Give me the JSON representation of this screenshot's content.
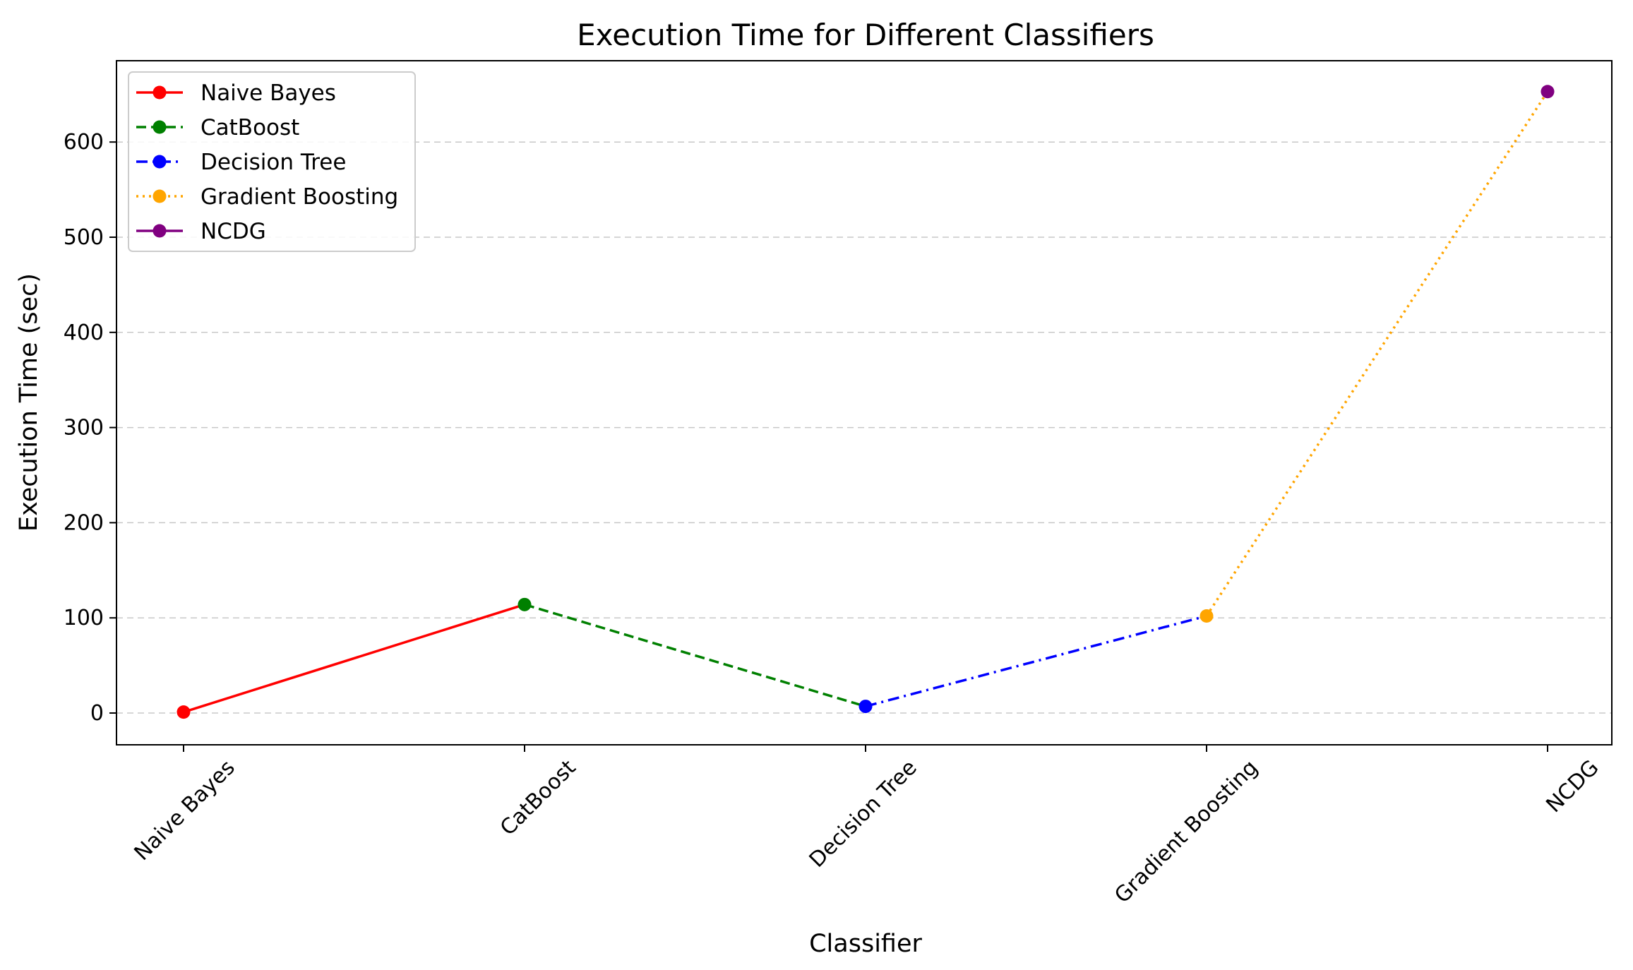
{
  "chart_data": {
    "type": "line",
    "title": "Execution Time for Different Classifiers",
    "xlabel": "Classifier",
    "ylabel": "Execution Time (sec)",
    "categories": [
      "Naive Bayes",
      "CatBoost",
      "Decision Tree",
      "Gradient Boosting",
      "NCDG"
    ],
    "values": [
      1,
      114,
      7,
      102,
      653
    ],
    "ylim": [
      -33,
      685
    ],
    "yticks": [
      0,
      100,
      200,
      300,
      400,
      500,
      600
    ],
    "ytick_labels": [
      "0",
      "100",
      "200",
      "300",
      "400",
      "500",
      "600"
    ],
    "grid": "y-dashed",
    "legend_position": "top-left",
    "series": [
      {
        "name": "Naive Bayes",
        "color": "#ff0000",
        "linestyle": "solid",
        "from_index": 0,
        "to_index": 1,
        "marker_index": 0
      },
      {
        "name": "CatBoost",
        "color": "#008000",
        "linestyle": "dashed",
        "from_index": 1,
        "to_index": 2,
        "marker_index": 1
      },
      {
        "name": "Decision Tree",
        "color": "#0000ff",
        "linestyle": "dashdot",
        "from_index": 2,
        "to_index": 3,
        "marker_index": 2
      },
      {
        "name": "Gradient Boosting",
        "color": "#ffa500",
        "linestyle": "dotted",
        "from_index": 3,
        "to_index": 4,
        "marker_index": 3
      },
      {
        "name": "NCDG",
        "color": "#800080",
        "linestyle": "solid",
        "from_index": null,
        "to_index": null,
        "marker_index": 4
      }
    ]
  }
}
